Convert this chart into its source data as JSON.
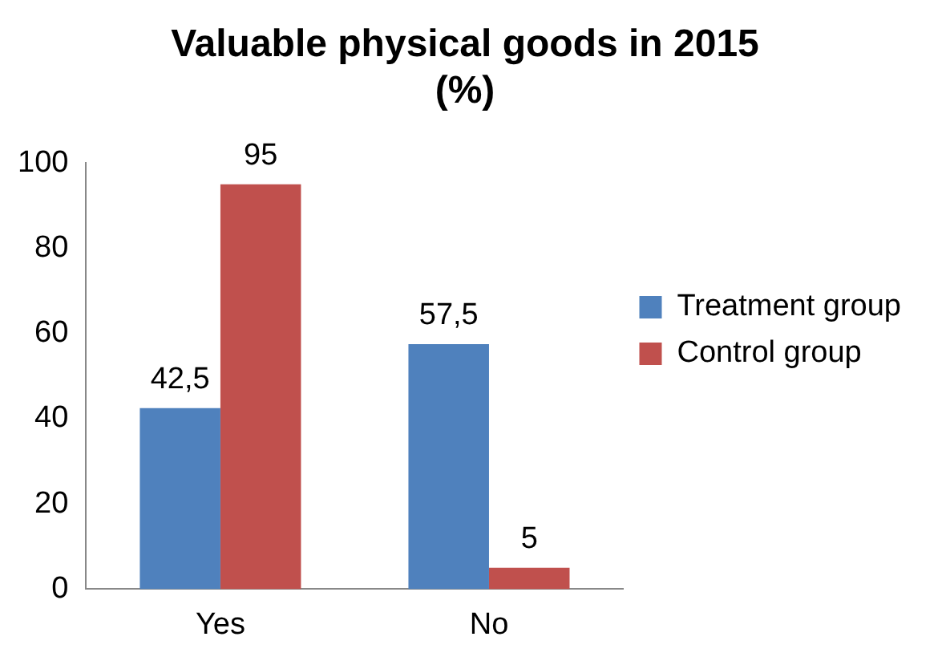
{
  "chart_data": {
    "type": "bar",
    "title": "Valuable physical goods in 2015 (%)",
    "categories": [
      "Yes",
      "No"
    ],
    "series": [
      {
        "name": "Treatment group",
        "color": "#4f81bd",
        "values": [
          42.5,
          57.5
        ],
        "value_labels": [
          "42,5",
          "57,5"
        ]
      },
      {
        "name": "Control group",
        "color": "#c0504d",
        "values": [
          95,
          5
        ],
        "value_labels": [
          "95",
          "5"
        ]
      }
    ],
    "ylim": [
      0,
      100
    ],
    "yticks": [
      0,
      20,
      40,
      60,
      80,
      100
    ],
    "grid": false,
    "legend": "right"
  }
}
